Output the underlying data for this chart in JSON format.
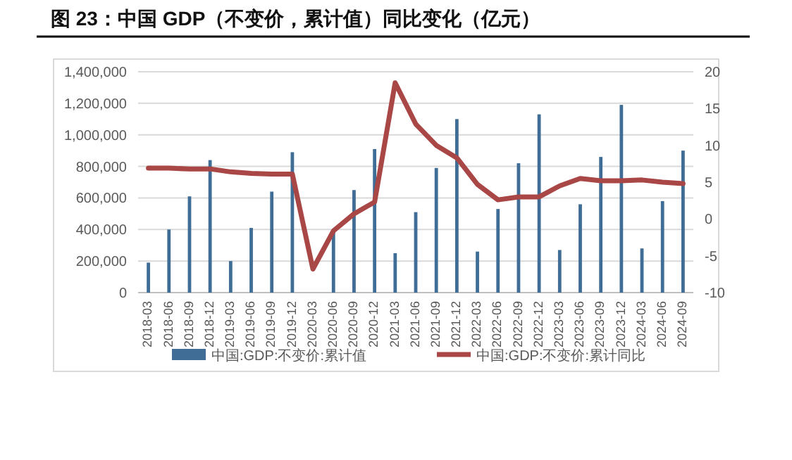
{
  "chart_data": {
    "type": "bar",
    "title": "图 23：中国 GDP（不变价，累计值）同比变化（亿元）",
    "categories": [
      "2018-03",
      "2018-06",
      "2018-09",
      "2018-12",
      "2019-03",
      "2019-06",
      "2019-09",
      "2019-12",
      "2020-03",
      "2020-06",
      "2020-09",
      "2020-12",
      "2021-03",
      "2021-06",
      "2021-09",
      "2021-12",
      "2022-03",
      "2022-06",
      "2022-09",
      "2022-12",
      "2023-03",
      "2023-06",
      "2023-09",
      "2023-12",
      "2024-03",
      "2024-06",
      "2024-09"
    ],
    "series": [
      {
        "name": "中国:GDP:不变价:累计值",
        "color": "#3f6d96",
        "values": [
          190000,
          400000,
          610000,
          840000,
          200000,
          410000,
          640000,
          890000,
          null,
          390000,
          650000,
          910000,
          250000,
          510000,
          790000,
          1100000,
          260000,
          530000,
          820000,
          1130000,
          270000,
          560000,
          860000,
          1190000,
          280000,
          580000,
          900000
        ]
      },
      {
        "name": "中国:GDP:不变价:累计同比",
        "type": "line",
        "axis": "y2",
        "color": "#a94646",
        "values": [
          6.9,
          6.9,
          6.8,
          6.8,
          6.4,
          6.2,
          6.1,
          6.1,
          -6.8,
          -1.6,
          0.7,
          2.3,
          18.5,
          12.9,
          10.0,
          8.3,
          4.7,
          2.6,
          3.0,
          3.0,
          4.5,
          5.5,
          5.2,
          5.2,
          5.3,
          5.0,
          4.8
        ]
      }
    ],
    "ylim": [
      0,
      1400000
    ],
    "yticks": [
      0,
      {
        "value": 200000,
        "label": "200,000"
      },
      {
        "value": 400000,
        "label": "400,000"
      },
      {
        "value": 600000,
        "label": "600,000"
      },
      {
        "value": 800000,
        "label": "800,000"
      },
      {
        "value": 1000000,
        "label": "1,000,000"
      },
      {
        "value": 1200000,
        "label": "1,200,000"
      },
      {
        "value": 1400000,
        "label": "1,400,000"
      }
    ],
    "y2lim": [
      -10,
      20
    ],
    "y2ticks": [
      -10,
      -5,
      0,
      5,
      10,
      15,
      20
    ],
    "grid": "y",
    "legend": "bottom",
    "marker": "none",
    "line_style": "solid"
  }
}
